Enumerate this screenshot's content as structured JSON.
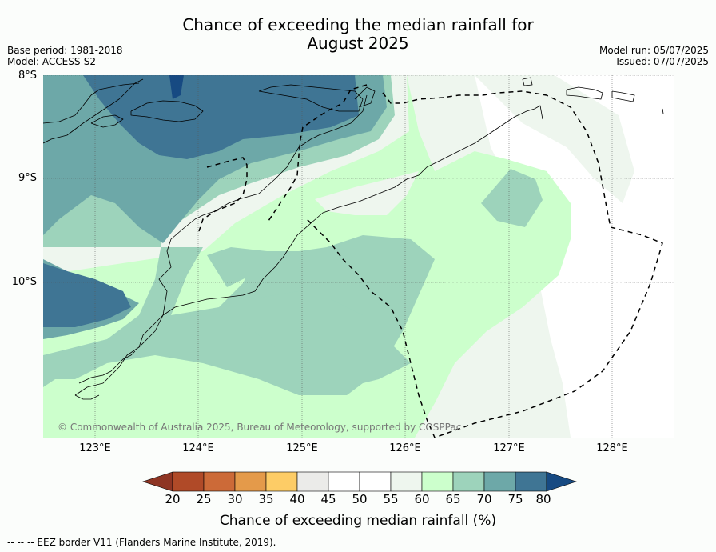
{
  "title_line1": "Chance of exceeding the median rainfall for",
  "title_line2": "August 2025",
  "meta_left": [
    "Base period: 1981-2018",
    "Model: ACCESS-S2"
  ],
  "meta_right": [
    "Model run: 05/07/2025",
    "Issued: 07/07/2025"
  ],
  "lat_labels": [
    "8°S",
    "9°S",
    "10°S"
  ],
  "lon_labels": [
    "123°E",
    "124°E",
    "125°E",
    "126°E",
    "127°E",
    "128°E"
  ],
  "copyright": "© Commonwealth of Australia 2025, Bureau of Meteorology, supported by COSPPac",
  "colorbar": {
    "ticks": [
      "20",
      "25",
      "30",
      "35",
      "40",
      "45",
      "50",
      "55",
      "60",
      "65",
      "70",
      "75",
      "80"
    ],
    "colors": [
      "#b04a28",
      "#cc6a38",
      "#e49a4a",
      "#fdcc66",
      "#ebebe9",
      "#ffffff",
      "#ffffff",
      "#eef6ee",
      "#ccffcc",
      "#9dd3bb",
      "#6da8a8",
      "#3f7594"
    ],
    "under_color": "#8e3524",
    "over_color": "#174a82",
    "label": "Chance of exceeding median rainfall (%)"
  },
  "footnote": "--  --  -- EEZ border V11 (Flanders Marine Institute, 2019)."
}
